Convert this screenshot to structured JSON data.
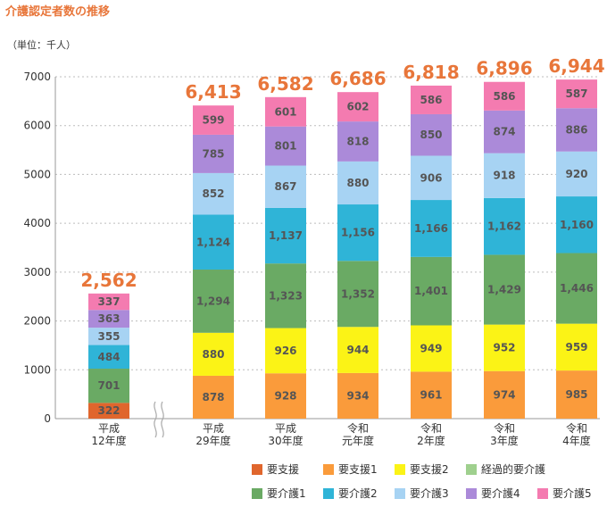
{
  "title": "介護認定者数の推移",
  "unit_label": "（単位：千人）",
  "chart_data": {
    "type": "bar",
    "stacked": true,
    "title": "介護認定者数の推移",
    "ylabel": "（単位：千人）",
    "ylim": [
      0,
      7000
    ],
    "yticks": [
      0,
      1000,
      2000,
      3000,
      4000,
      5000,
      6000,
      7000
    ],
    "axis_break_after_first": true,
    "categories": [
      [
        "平成",
        "12年度"
      ],
      [
        "平成",
        "29年度"
      ],
      [
        "平成",
        "30年度"
      ],
      [
        "令和",
        "元年度"
      ],
      [
        "令和",
        "2年度"
      ],
      [
        "令和",
        "3年度"
      ],
      [
        "令和",
        "4年度"
      ]
    ],
    "totals": [
      "2,562",
      "6,413",
      "6,582",
      "6,686",
      "6,818",
      "6,896",
      "6,944"
    ],
    "series": [
      {
        "name": "要支援",
        "color": "#e0662d",
        "values": [
          322,
          null,
          null,
          null,
          null,
          null,
          null
        ],
        "labels": [
          "322",
          "",
          "",
          "",
          "",
          "",
          ""
        ]
      },
      {
        "name": "要支援1",
        "color": "#fa9b3b",
        "values": [
          null,
          878,
          928,
          934,
          961,
          974,
          985
        ],
        "labels": [
          "",
          "878",
          "928",
          "934",
          "961",
          "974",
          "985"
        ]
      },
      {
        "name": "要支援2",
        "color": "#fbf316",
        "values": [
          null,
          880,
          926,
          944,
          949,
          952,
          959
        ],
        "labels": [
          "",
          "880",
          "926",
          "944",
          "949",
          "952",
          "959"
        ]
      },
      {
        "name": "経過的要介護",
        "color": "#9fd08e",
        "values": [
          null,
          null,
          null,
          null,
          null,
          null,
          null
        ],
        "labels": [
          "",
          "",
          "",
          "",
          "",
          "",
          ""
        ]
      },
      {
        "name": "要介護1",
        "color": "#6aaa64",
        "values": [
          701,
          1294,
          1323,
          1352,
          1401,
          1429,
          1446
        ],
        "labels": [
          "701",
          "1,294",
          "1,323",
          "1,352",
          "1,401",
          "1,429",
          "1,446"
        ]
      },
      {
        "name": "要介護2",
        "color": "#2fb4d7",
        "values": [
          484,
          1124,
          1137,
          1156,
          1166,
          1162,
          1160
        ],
        "labels": [
          "484",
          "1,124",
          "1,137",
          "1,156",
          "1,166",
          "1,162",
          "1,160"
        ]
      },
      {
        "name": "要介護3",
        "color": "#a7d3f3",
        "values": [
          355,
          852,
          867,
          880,
          906,
          918,
          920
        ],
        "labels": [
          "355",
          "852",
          "867",
          "880",
          "906",
          "918",
          "920"
        ]
      },
      {
        "name": "要介護4",
        "color": "#ab8ad9",
        "values": [
          363,
          785,
          801,
          818,
          850,
          874,
          886
        ],
        "labels": [
          "363",
          "785",
          "801",
          "818",
          "850",
          "874",
          "886"
        ]
      },
      {
        "name": "要介護5",
        "color": "#f47bb0",
        "values": [
          337,
          599,
          601,
          602,
          586,
          586,
          587
        ],
        "labels": [
          "337",
          "599",
          "601",
          "602",
          "586",
          "586",
          "587"
        ]
      }
    ]
  }
}
